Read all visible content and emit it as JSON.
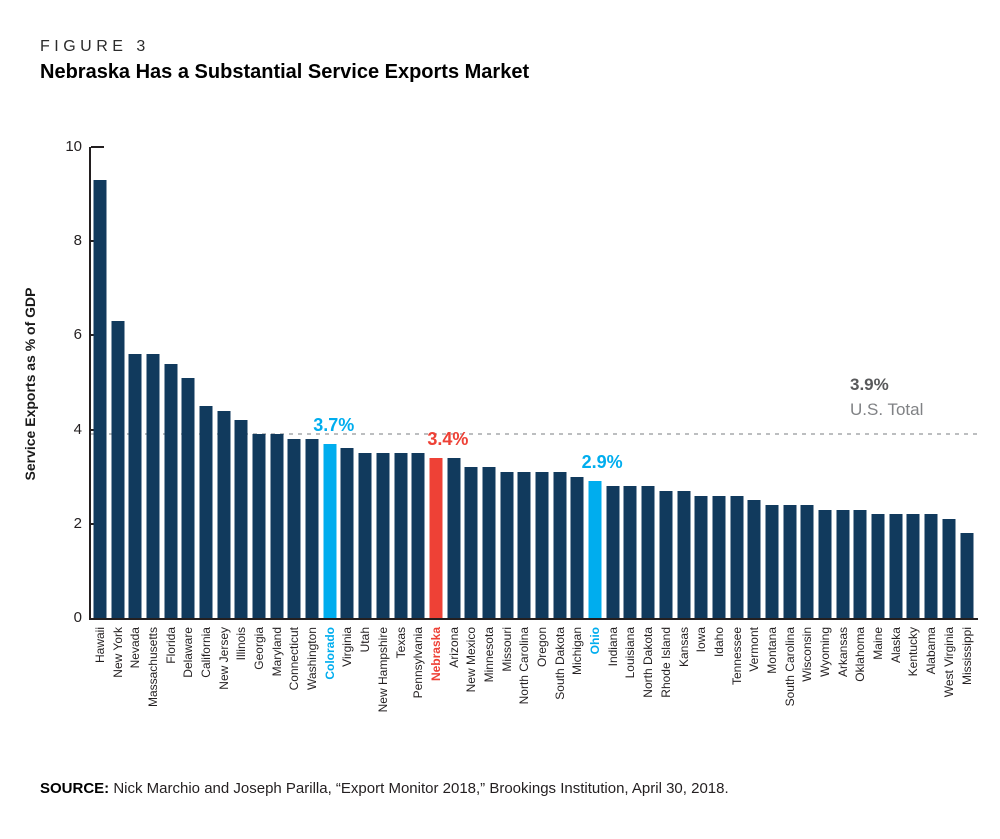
{
  "figure": {
    "label": "FIGURE 3",
    "title": "Nebraska Has a Substantial Service Exports Market"
  },
  "source": {
    "prefix": "SOURCE:",
    "text": " Nick Marchio and Joseph Parilla, “Export Monitor 2018,” Brookings Institution, April 30, 2018."
  },
  "chart_data": {
    "type": "bar",
    "title": "Nebraska Has a Substantial Service Exports Market",
    "xlabel": "",
    "ylabel": "Service Exports as % of GDP",
    "ylim": [
      0,
      10
    ],
    "yticks": [
      0,
      2,
      4,
      6,
      8,
      10
    ],
    "grid": false,
    "reference_line": {
      "value": 3.9,
      "label_value": "3.9%",
      "label_text": "U.S. Total",
      "line_color": "#BCBEC0"
    },
    "colors": {
      "navy": "#113A5D",
      "blue": "#00ADEE",
      "red": "#EE4136"
    },
    "categories": [
      "Hawaii",
      "New York",
      "Nevada",
      "Massachusetts",
      "Florida",
      "Delaware",
      "California",
      "New Jersey",
      "Illinois",
      "Georgia",
      "Maryland",
      "Connecticut",
      "Washington",
      "Colorado",
      "Virginia",
      "Utah",
      "New Hampshire",
      "Texas",
      "Pennsylvania",
      "Nebraska",
      "Arizona",
      "New Mexico",
      "Minnesota",
      "Missouri",
      "North Carolina",
      "Oregon",
      "South Dakota",
      "Michigan",
      "Ohio",
      "Indiana",
      "Louisiana",
      "North Dakota",
      "Rhode Island",
      "Kansas",
      "Iowa",
      "Idaho",
      "Tennessee",
      "Vermont",
      "Montana",
      "South Carolina",
      "Wisconsin",
      "Wyoming",
      "Arkansas",
      "Oklahoma",
      "Maine",
      "Alaska",
      "Kentucky",
      "Alabama",
      "West Virginia",
      "Mississippi"
    ],
    "values": [
      9.3,
      6.3,
      5.6,
      5.6,
      5.4,
      5.1,
      4.5,
      4.4,
      4.2,
      3.9,
      3.9,
      3.8,
      3.8,
      3.7,
      3.6,
      3.5,
      3.5,
      3.5,
      3.5,
      3.4,
      3.4,
      3.2,
      3.2,
      3.1,
      3.1,
      3.1,
      3.1,
      3.0,
      2.9,
      2.8,
      2.8,
      2.8,
      2.7,
      2.7,
      2.6,
      2.6,
      2.6,
      2.5,
      2.4,
      2.4,
      2.4,
      2.3,
      2.3,
      2.3,
      2.2,
      2.2,
      2.2,
      2.2,
      2.1,
      1.8
    ],
    "bars": [
      {
        "state": "Hawaii",
        "value": 9.3
      },
      {
        "state": "New York",
        "value": 6.3
      },
      {
        "state": "Nevada",
        "value": 5.6
      },
      {
        "state": "Massachusetts",
        "value": 5.6
      },
      {
        "state": "Florida",
        "value": 5.4
      },
      {
        "state": "Delaware",
        "value": 5.1
      },
      {
        "state": "California",
        "value": 4.5
      },
      {
        "state": "New Jersey",
        "value": 4.4
      },
      {
        "state": "Illinois",
        "value": 4.2
      },
      {
        "state": "Georgia",
        "value": 3.9
      },
      {
        "state": "Maryland",
        "value": 3.9
      },
      {
        "state": "Connecticut",
        "value": 3.8
      },
      {
        "state": "Washington",
        "value": 3.8
      },
      {
        "state": "Colorado",
        "value": 3.7,
        "color": "blue",
        "callout_label": "3.7%",
        "callout_dx": 4
      },
      {
        "state": "Virginia",
        "value": 3.6
      },
      {
        "state": "Utah",
        "value": 3.5
      },
      {
        "state": "New Hampshire",
        "value": 3.5
      },
      {
        "state": "Texas",
        "value": 3.5
      },
      {
        "state": "Pennsylvania",
        "value": 3.5
      },
      {
        "state": "Nebraska",
        "value": 3.4,
        "color": "red",
        "callout_label": "3.4%",
        "callout_dx": 12
      },
      {
        "state": "Arizona",
        "value": 3.4
      },
      {
        "state": "New Mexico",
        "value": 3.2
      },
      {
        "state": "Minnesota",
        "value": 3.2
      },
      {
        "state": "Missouri",
        "value": 3.1
      },
      {
        "state": "North Carolina",
        "value": 3.1
      },
      {
        "state": "Oregon",
        "value": 3.1
      },
      {
        "state": "South Dakota",
        "value": 3.1
      },
      {
        "state": "Michigan",
        "value": 3.0
      },
      {
        "state": "Ohio",
        "value": 2.9,
        "color": "blue",
        "callout_label": "2.9%",
        "callout_dx": 7
      },
      {
        "state": "Indiana",
        "value": 2.8
      },
      {
        "state": "Louisiana",
        "value": 2.8
      },
      {
        "state": "North Dakota",
        "value": 2.8
      },
      {
        "state": "Rhode Island",
        "value": 2.7
      },
      {
        "state": "Kansas",
        "value": 2.7
      },
      {
        "state": "Iowa",
        "value": 2.6
      },
      {
        "state": "Idaho",
        "value": 2.6
      },
      {
        "state": "Tennessee",
        "value": 2.6
      },
      {
        "state": "Vermont",
        "value": 2.5
      },
      {
        "state": "Montana",
        "value": 2.4
      },
      {
        "state": "South Carolina",
        "value": 2.4
      },
      {
        "state": "Wisconsin",
        "value": 2.4
      },
      {
        "state": "Wyoming",
        "value": 2.3
      },
      {
        "state": "Arkansas",
        "value": 2.3
      },
      {
        "state": "Oklahoma",
        "value": 2.3
      },
      {
        "state": "Maine",
        "value": 2.2
      },
      {
        "state": "Alaska",
        "value": 2.2
      },
      {
        "state": "Kentucky",
        "value": 2.2
      },
      {
        "state": "Alabama",
        "value": 2.2
      },
      {
        "state": "West Virginia",
        "value": 2.1
      },
      {
        "state": "Mississippi",
        "value": 1.8
      }
    ]
  }
}
